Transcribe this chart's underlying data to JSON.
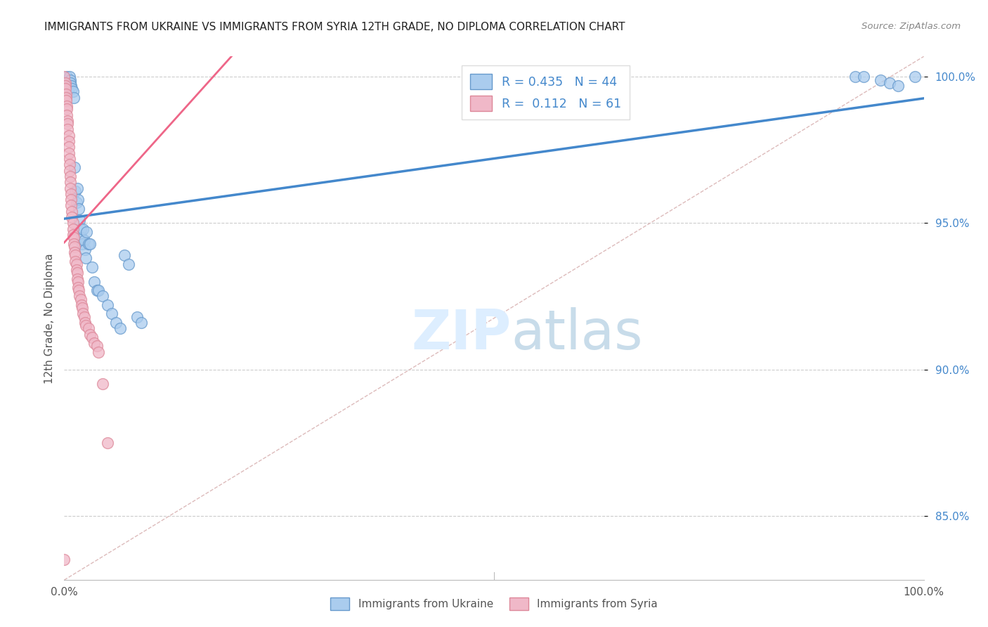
{
  "title": "IMMIGRANTS FROM UKRAINE VS IMMIGRANTS FROM SYRIA 12TH GRADE, NO DIPLOMA CORRELATION CHART",
  "source": "Source: ZipAtlas.com",
  "ylabel": "12th Grade, No Diploma",
  "r_ukraine": 0.435,
  "n_ukraine": 44,
  "r_syria": 0.112,
  "n_syria": 61,
  "ukraine_color": "#aaccee",
  "ukraine_edge_color": "#6699cc",
  "ukraine_line_color": "#4488cc",
  "syria_color": "#f0b8c8",
  "syria_edge_color": "#dd8899",
  "syria_line_color": "#ee6688",
  "diag_color": "#ddbbbb",
  "grid_color": "#cccccc",
  "legend_ukraine": "Immigrants from Ukraine",
  "legend_syria": "Immigrants from Syria",
  "xlim": [
    0.0,
    1.0
  ],
  "ylim": [
    0.828,
    1.007
  ],
  "ytick_positions": [
    0.85,
    0.9,
    0.95,
    1.0
  ],
  "ytick_labels": [
    "85.0%",
    "90.0%",
    "95.0%",
    "100.0%"
  ],
  "background_color": "#ffffff",
  "watermark_zip": "ZIP",
  "watermark_atlas": "atlas",
  "watermark_color": "#ddeeff",
  "title_color": "#222222",
  "source_color": "#888888",
  "tick_color": "#4488cc",
  "ukraine_x": [
    0.003,
    0.006,
    0.007,
    0.007,
    0.008,
    0.009,
    0.01,
    0.011,
    0.012,
    0.013,
    0.014,
    0.015,
    0.016,
    0.017,
    0.018,
    0.019,
    0.02,
    0.021,
    0.022,
    0.023,
    0.024,
    0.025,
    0.026,
    0.028,
    0.03,
    0.032,
    0.035,
    0.038,
    0.04,
    0.045,
    0.05,
    0.055,
    0.06,
    0.065,
    0.07,
    0.075,
    0.085,
    0.09,
    0.92,
    0.93,
    0.95,
    0.96,
    0.97,
    0.99
  ],
  "ukraine_y": [
    1.0,
    1.0,
    0.999,
    0.998,
    0.997,
    0.996,
    0.995,
    0.993,
    0.969,
    0.961,
    0.957,
    0.962,
    0.958,
    0.955,
    0.951,
    0.948,
    0.945,
    0.943,
    0.948,
    0.944,
    0.941,
    0.938,
    0.947,
    0.943,
    0.943,
    0.935,
    0.93,
    0.927,
    0.927,
    0.925,
    0.922,
    0.919,
    0.916,
    0.914,
    0.939,
    0.936,
    0.918,
    0.916,
    1.0,
    1.0,
    0.999,
    0.998,
    0.997,
    1.0
  ],
  "syria_x": [
    0.0,
    0.0,
    0.001,
    0.001,
    0.001,
    0.002,
    0.002,
    0.002,
    0.003,
    0.003,
    0.003,
    0.004,
    0.004,
    0.004,
    0.005,
    0.005,
    0.005,
    0.005,
    0.006,
    0.006,
    0.006,
    0.007,
    0.007,
    0.007,
    0.008,
    0.008,
    0.008,
    0.009,
    0.009,
    0.01,
    0.01,
    0.01,
    0.011,
    0.011,
    0.012,
    0.012,
    0.013,
    0.013,
    0.014,
    0.014,
    0.015,
    0.015,
    0.016,
    0.016,
    0.017,
    0.018,
    0.019,
    0.02,
    0.021,
    0.022,
    0.023,
    0.024,
    0.025,
    0.028,
    0.03,
    0.032,
    0.035,
    0.038,
    0.04,
    0.045,
    0.05
  ],
  "syria_y": [
    0.835,
    1.0,
    0.998,
    0.997,
    0.996,
    0.994,
    0.993,
    0.992,
    0.99,
    0.989,
    0.987,
    0.985,
    0.984,
    0.982,
    0.98,
    0.978,
    0.976,
    0.974,
    0.972,
    0.97,
    0.968,
    0.966,
    0.964,
    0.962,
    0.96,
    0.958,
    0.956,
    0.954,
    0.952,
    0.95,
    0.948,
    0.946,
    0.945,
    0.943,
    0.942,
    0.94,
    0.939,
    0.937,
    0.936,
    0.934,
    0.933,
    0.931,
    0.93,
    0.928,
    0.927,
    0.925,
    0.924,
    0.922,
    0.921,
    0.919,
    0.918,
    0.916,
    0.915,
    0.914,
    0.912,
    0.911,
    0.909,
    0.908,
    0.906,
    0.895,
    0.875
  ]
}
